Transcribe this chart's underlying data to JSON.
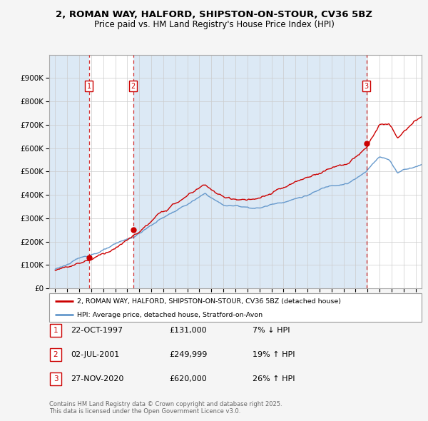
{
  "title_line1": "2, ROMAN WAY, HALFORD, SHIPSTON-ON-STOUR, CV36 5BZ",
  "title_line2": "Price paid vs. HM Land Registry's House Price Index (HPI)",
  "sale_dates_num": [
    1997.81,
    2001.5,
    2020.91
  ],
  "sale_prices": [
    131000,
    249999,
    620000
  ],
  "sale_labels": [
    "1",
    "2",
    "3"
  ],
  "sale_annotations": [
    {
      "label": "1",
      "date": "22-OCT-1997",
      "price": "£131,000",
      "hpi": "7% ↓ HPI"
    },
    {
      "label": "2",
      "date": "02-JUL-2001",
      "price": "£249,999",
      "hpi": "19% ↑ HPI"
    },
    {
      "label": "3",
      "date": "27-NOV-2020",
      "price": "£620,000",
      "hpi": "26% ↑ HPI"
    }
  ],
  "legend_line1": "2, ROMAN WAY, HALFORD, SHIPSTON-ON-STOUR, CV36 5BZ (detached house)",
  "legend_line2": "HPI: Average price, detached house, Stratford-on-Avon",
  "footer": "Contains HM Land Registry data © Crown copyright and database right 2025.\nThis data is licensed under the Open Government Licence v3.0.",
  "property_color": "#cc0000",
  "hpi_color": "#6699cc",
  "shade_color": "#dce9f5",
  "background_color": "#f5f5f5",
  "plot_bg_color": "#ffffff",
  "ylim": [
    0,
    1000000
  ],
  "yticks": [
    0,
    100000,
    200000,
    300000,
    400000,
    500000,
    600000,
    700000,
    800000,
    900000
  ],
  "xmin": 1994.5,
  "xmax": 2025.5
}
